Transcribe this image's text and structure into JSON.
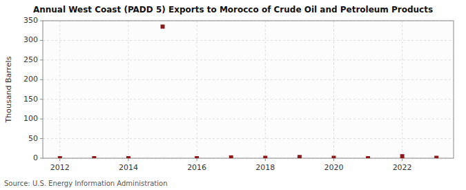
{
  "chart_data": {
    "type": "scatter",
    "title": "Annual West Coast (PADD 5) Exports to Morocco of Crude Oil and Petroleum Products",
    "y_label": "Thousand Barrels",
    "source": "Source: U.S. Energy Information Administration",
    "x": [
      2012,
      2013,
      2014,
      2015,
      2016,
      2017,
      2018,
      2019,
      2020,
      2021,
      2022,
      2023
    ],
    "values": [
      0,
      0,
      0,
      335,
      0,
      2,
      1,
      3,
      1,
      0,
      5,
      1
    ],
    "color": "#8b1a1a",
    "marker": "square",
    "xlim": [
      2011.5,
      2023.5
    ],
    "xticks": [
      2012,
      2014,
      2016,
      2018,
      2020,
      2022
    ],
    "ylim": [
      0,
      350
    ],
    "yticks": [
      0,
      50,
      100,
      150,
      200,
      250,
      300,
      350
    ],
    "grid": true
  }
}
